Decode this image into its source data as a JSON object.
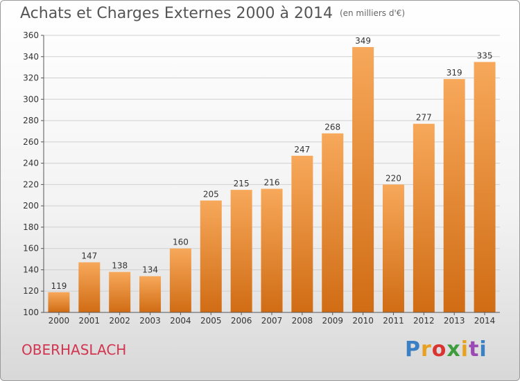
{
  "header": {
    "title": "Achats et Charges Externes 2000 à 2014",
    "unit": "(en milliers d'€)"
  },
  "footer": {
    "city": "OBERHASLACH",
    "logo_text": "Proxiti",
    "logo_colors": [
      "#3b7fc4",
      "#e8a021",
      "#d9342f",
      "#3b9d3b",
      "#e8a021",
      "#9b49b5",
      "#3b7fc4"
    ]
  },
  "colors": {
    "bar_top": "#f7a85a",
    "bar_bottom": "#d06c14",
    "grid": "#d0d0d0",
    "axis": "#555555",
    "text": "#333333",
    "city": "#d3344f"
  },
  "chart_data": {
    "type": "bar",
    "title": "Achats et Charges Externes 2000 à 2014",
    "subtitle": "(en milliers d'€)",
    "xlabel": "",
    "ylabel": "",
    "categories": [
      "2000",
      "2001",
      "2002",
      "2003",
      "2004",
      "2005",
      "2006",
      "2007",
      "2008",
      "2009",
      "2010",
      "2011",
      "2012",
      "2013",
      "2014"
    ],
    "values": [
      119,
      147,
      138,
      134,
      160,
      205,
      215,
      216,
      247,
      268,
      349,
      220,
      277,
      319,
      335
    ],
    "ylim": [
      100,
      360
    ],
    "yticks": [
      100,
      120,
      140,
      160,
      180,
      200,
      220,
      240,
      260,
      280,
      300,
      320,
      340,
      360
    ],
    "grid": true,
    "data_labels": true
  }
}
